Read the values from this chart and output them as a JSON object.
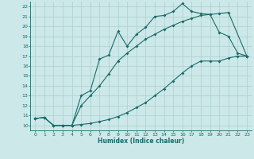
{
  "xlabel": "Humidex (Indice chaleur)",
  "bg_color": "#cce8e8",
  "line_color": "#1a6b6b",
  "grid_color": "#aacfcf",
  "xlim": [
    -0.5,
    23.5
  ],
  "ylim": [
    9.5,
    22.5
  ],
  "xticks": [
    0,
    1,
    2,
    3,
    4,
    5,
    6,
    7,
    8,
    9,
    10,
    11,
    12,
    13,
    14,
    15,
    16,
    17,
    18,
    19,
    20,
    21,
    22,
    23
  ],
  "yticks": [
    10,
    11,
    12,
    13,
    14,
    15,
    16,
    17,
    18,
    19,
    20,
    21,
    22
  ],
  "curve1_x": [
    0,
    1,
    2,
    3,
    4,
    5,
    6,
    7,
    8,
    9,
    10,
    11,
    12,
    13,
    14,
    15,
    16,
    17,
    18,
    19,
    20,
    21,
    22,
    23
  ],
  "curve1_y": [
    10.7,
    10.8,
    10.0,
    10.0,
    10.0,
    10.1,
    10.2,
    10.4,
    10.6,
    10.9,
    11.3,
    11.8,
    12.3,
    13.0,
    13.7,
    14.5,
    15.3,
    16.0,
    16.5,
    16.5,
    16.5,
    16.8,
    17.0,
    17.0
  ],
  "curve2_x": [
    0,
    1,
    2,
    3,
    4,
    5,
    6,
    7,
    8,
    9,
    10,
    11,
    12,
    13,
    14,
    15,
    16,
    17,
    18,
    19,
    20,
    21,
    22,
    23
  ],
  "curve2_y": [
    10.7,
    10.8,
    10.0,
    10.0,
    10.0,
    13.0,
    13.5,
    16.7,
    17.1,
    19.5,
    18.0,
    19.2,
    19.9,
    21.0,
    21.1,
    21.5,
    22.3,
    21.5,
    21.3,
    21.2,
    19.4,
    19.0,
    17.3,
    17.0
  ],
  "curve3_x": [
    0,
    1,
    2,
    3,
    4,
    5,
    6,
    7,
    8,
    9,
    10,
    11,
    12,
    13,
    14,
    15,
    16,
    17,
    18,
    19,
    20,
    21,
    23
  ],
  "curve3_y": [
    10.7,
    10.8,
    10.0,
    10.0,
    10.0,
    12.0,
    13.0,
    14.0,
    15.2,
    16.5,
    17.3,
    18.0,
    18.7,
    19.2,
    19.7,
    20.1,
    20.5,
    20.8,
    21.1,
    21.2,
    21.3,
    21.4,
    17.0
  ]
}
